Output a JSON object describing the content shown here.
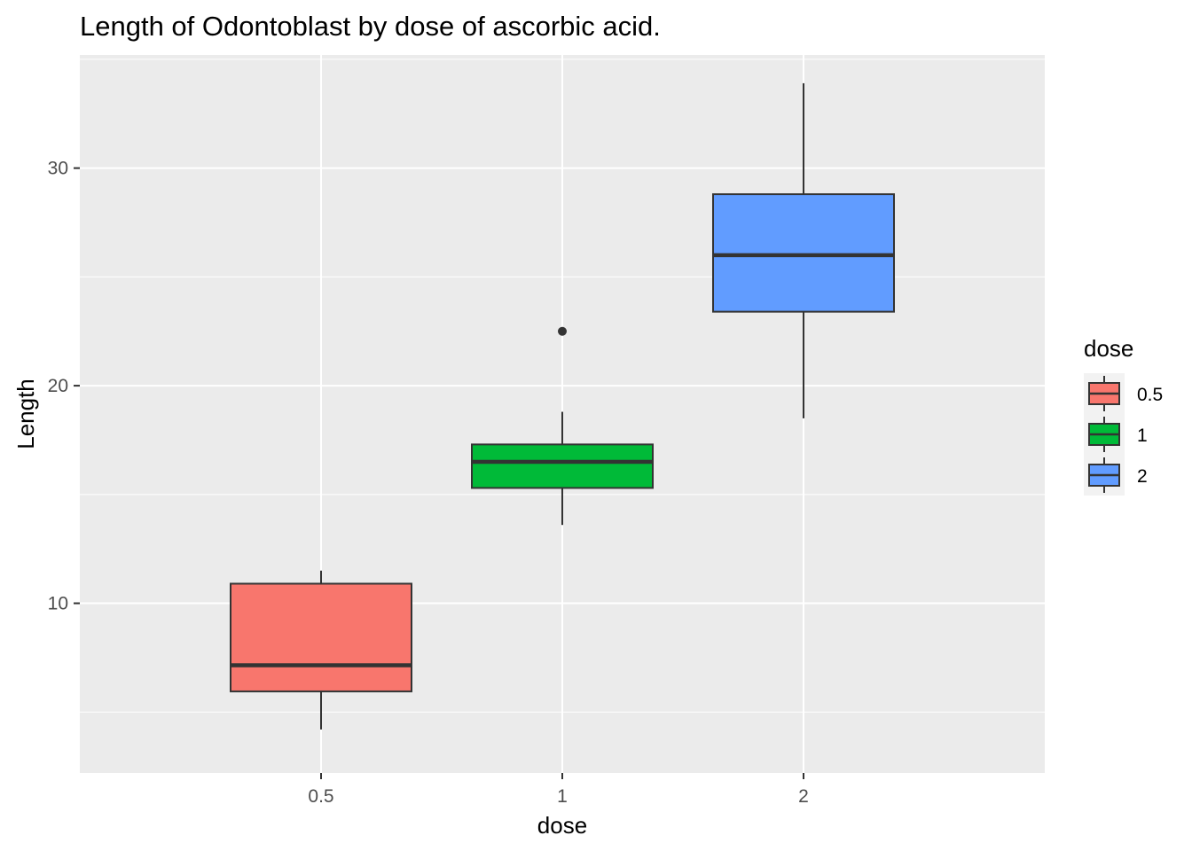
{
  "chart_data": {
    "type": "boxplot",
    "title": "Length of Odontoblast by dose of ascorbic acid.",
    "xlabel": "dose",
    "ylabel": "Length",
    "categories": [
      "0.5",
      "1",
      "2"
    ],
    "y_ticks": [
      10,
      20,
      30
    ],
    "ylim": [
      2.2,
      35.2
    ],
    "grid": true,
    "legend": {
      "title": "dose",
      "position": "right",
      "entries": [
        "0.5",
        "1",
        "2"
      ]
    },
    "colors": [
      "#F8766D",
      "#00BA38",
      "#619CFF"
    ],
    "boxes": [
      {
        "category": "0.5",
        "min": 4.2,
        "q1": 5.95,
        "median": 7.15,
        "q3": 10.9,
        "max": 11.5,
        "outliers": []
      },
      {
        "category": "1",
        "min": 13.6,
        "q1": 15.3,
        "median": 16.5,
        "q3": 17.3,
        "max": 18.8,
        "outliers": [
          22.5
        ]
      },
      {
        "category": "2",
        "min": 18.5,
        "q1": 23.4,
        "median": 26.0,
        "q3": 28.8,
        "max": 33.9,
        "outliers": []
      }
    ]
  }
}
